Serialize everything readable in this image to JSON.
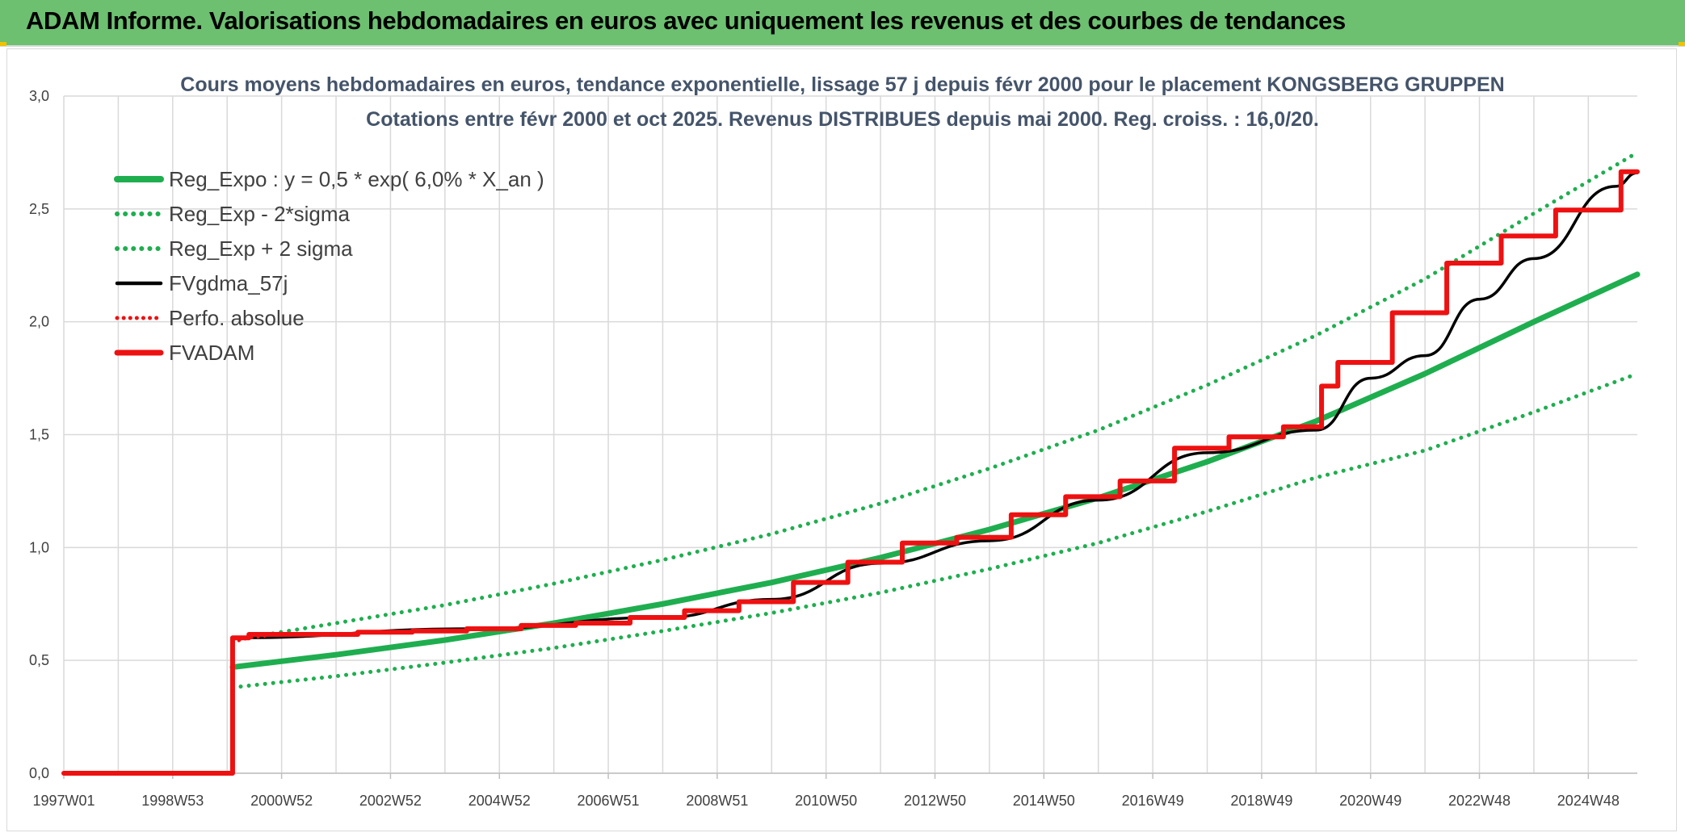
{
  "header": {
    "title": "ADAM Informe. Valorisations hebdomadaires en euros avec uniquement les revenus et des courbes de tendances"
  },
  "colors": {
    "header_bg": "#6cc070",
    "regression": "#1fae4f",
    "price": "#000000",
    "adam": "#ee1111",
    "grid": "#d9d9d9"
  },
  "chart_data": {
    "type": "line",
    "title": "Cours moyens hebdomadaires en euros, tendance exponentielle, lissage 57 j depuis févr 2000 pour le placement KONGSBERG GRUPPEN",
    "subtitle": "Cotations entre févr 2000 et oct 2025. Revenus DISTRIBUES depuis mai 2000. Reg. croiss. : 16,0/20.",
    "xlabel": "",
    "ylabel": "",
    "xlim": [
      1997.0,
      2025.9
    ],
    "ylim": [
      0,
      3.0
    ],
    "y_ticks": [
      "0,0",
      "0,5",
      "1,0",
      "1,5",
      "2,0",
      "2,5",
      "3,0"
    ],
    "x_ticks": [
      {
        "label": "1997W01",
        "x": 1997.0
      },
      {
        "label": "1998W53",
        "x": 1999.0
      },
      {
        "label": "2000W52",
        "x": 2001.0
      },
      {
        "label": "2002W52",
        "x": 2003.0
      },
      {
        "label": "2004W52",
        "x": 2005.0
      },
      {
        "label": "2006W51",
        "x": 2007.0
      },
      {
        "label": "2008W51",
        "x": 2009.0
      },
      {
        "label": "2010W50",
        "x": 2011.0
      },
      {
        "label": "2012W50",
        "x": 2013.0
      },
      {
        "label": "2014W50",
        "x": 2015.0
      },
      {
        "label": "2016W49",
        "x": 2017.0
      },
      {
        "label": "2018W49",
        "x": 2019.0
      },
      {
        "label": "2020W49",
        "x": 2021.0
      },
      {
        "label": "2022W48",
        "x": 2023.0
      },
      {
        "label": "2024W48",
        "x": 2025.0
      }
    ],
    "grid": true,
    "legend_position": "top-left",
    "series": [
      {
        "name": "Reg_Expo : y = 0,5 * exp( 6,0% *  X_an )",
        "style": "solid-green",
        "x": [
          2000.1,
          2002.0,
          2004.0,
          2006.0,
          2008.0,
          2010.0,
          2012.0,
          2014.0,
          2016.0,
          2018.0,
          2020.0,
          2022.0,
          2024.0,
          2025.9
        ],
        "values": [
          0.47,
          0.525,
          0.59,
          0.665,
          0.75,
          0.845,
          0.955,
          1.08,
          1.22,
          1.38,
          1.56,
          1.77,
          2.0,
          2.21
        ]
      },
      {
        "name": "Reg_Exp - 2*sigma",
        "style": "dotted-green",
        "x": [
          2000.1,
          2002.0,
          2004.0,
          2006.0,
          2008.0,
          2010.0,
          2012.0,
          2014.0,
          2016.0,
          2018.0,
          2020.0,
          2022.0,
          2024.0,
          2025.9
        ],
        "values": [
          0.38,
          0.43,
          0.49,
          0.555,
          0.63,
          0.71,
          0.8,
          0.905,
          1.02,
          1.16,
          1.31,
          1.43,
          1.6,
          1.77
        ]
      },
      {
        "name": "Reg_Exp + 2 sigma",
        "style": "dotted-green",
        "x": [
          2000.1,
          2002.0,
          2004.0,
          2006.0,
          2008.0,
          2010.0,
          2012.0,
          2014.0,
          2016.0,
          2018.0,
          2020.0,
          2022.0,
          2024.0,
          2025.9
        ],
        "values": [
          0.59,
          0.665,
          0.745,
          0.84,
          0.945,
          1.06,
          1.195,
          1.35,
          1.52,
          1.72,
          1.94,
          2.19,
          2.48,
          2.75
        ]
      },
      {
        "name": "FVgdma_57j",
        "style": "solid-black",
        "x": [
          2000.1,
          2004.5,
          2008.0,
          2010.0,
          2012.0,
          2014.0,
          2016.0,
          2018.0,
          2020.0,
          2021.0,
          2022.0,
          2023.0,
          2024.0,
          2025.5,
          2025.9
        ],
        "values": [
          0.6,
          0.64,
          0.69,
          0.77,
          0.93,
          1.03,
          1.21,
          1.42,
          1.52,
          1.75,
          1.85,
          2.1,
          2.28,
          2.6,
          2.66
        ]
      },
      {
        "name": "Perfo. absolue",
        "style": "dotted-red",
        "x": [
          2000.1,
          2000.4,
          2000.8
        ],
        "values": [
          0.58,
          0.6,
          0.61
        ]
      },
      {
        "name": "FVADAM",
        "style": "solid-red-step",
        "x": [
          1997.0,
          2000.1,
          2000.1,
          2000.4,
          2002.4,
          2003.4,
          2004.4,
          2005.4,
          2006.4,
          2007.4,
          2008.4,
          2009.4,
          2010.4,
          2011.4,
          2012.4,
          2013.4,
          2014.4,
          2015.4,
          2016.4,
          2017.4,
          2018.4,
          2019.4,
          2020.1,
          2020.4,
          2021.4,
          2022.4,
          2023.4,
          2024.4,
          2024.95,
          2025.6,
          2025.9
        ],
        "values": [
          0.0,
          0.0,
          0.6,
          0.615,
          0.625,
          0.63,
          0.64,
          0.655,
          0.665,
          0.69,
          0.72,
          0.76,
          0.845,
          0.935,
          1.02,
          1.045,
          1.145,
          1.225,
          1.295,
          1.44,
          1.49,
          1.535,
          1.715,
          1.82,
          2.04,
          2.26,
          2.38,
          2.495,
          2.495,
          2.665,
          2.665
        ]
      }
    ]
  }
}
